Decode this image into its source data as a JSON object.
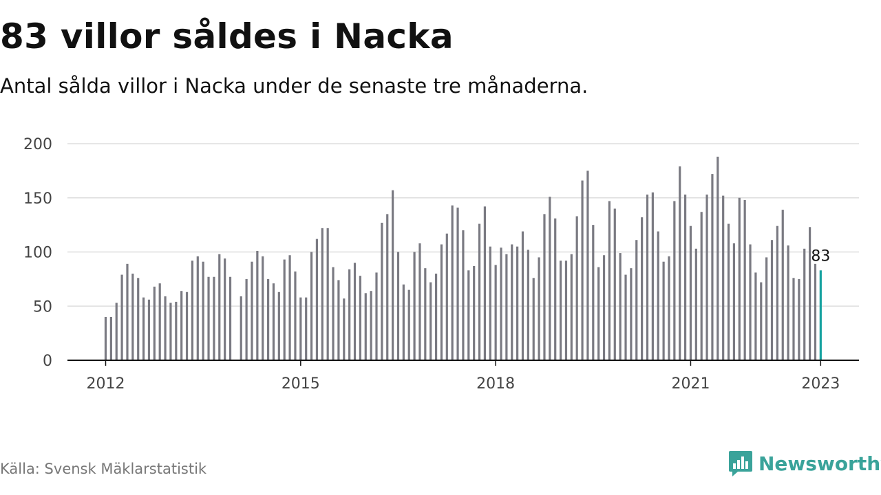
{
  "title": "83 villor såldes i Nacka",
  "subtitle": "Antal sålda villor i Nacka under de senaste tre månaderna.",
  "source": "Källa: Svensk Mäklarstatistik",
  "brand": {
    "name": "Newsworthy",
    "icon": "newsworthy-logo-icon"
  },
  "colors": {
    "bar": "#7a7a82",
    "highlight": "#17a2a0",
    "grid": "#dddddd",
    "axis": "#111111",
    "brand": "#3aa39a"
  },
  "chart_data": {
    "type": "bar",
    "xlabel": "",
    "ylabel": "",
    "ylim": [
      0,
      200
    ],
    "yticks": [
      0,
      50,
      100,
      150,
      200
    ],
    "xtick_labels": [
      "2012",
      "2015",
      "2018",
      "2021",
      "2023"
    ],
    "grid": true,
    "x_start": "2012-01",
    "x_end": "2023-01",
    "highlight_label": "83",
    "values": [
      40,
      40,
      53,
      79,
      89,
      80,
      76,
      58,
      56,
      68,
      71,
      59,
      53,
      54,
      64,
      63,
      92,
      96,
      91,
      77,
      77,
      98,
      94,
      77,
      null,
      59,
      75,
      91,
      101,
      96,
      75,
      71,
      63,
      93,
      97,
      82,
      58,
      58,
      100,
      112,
      122,
      122,
      86,
      74,
      57,
      84,
      90,
      78,
      62,
      64,
      81,
      127,
      135,
      157,
      100,
      70,
      65,
      100,
      108,
      85,
      72,
      80,
      107,
      117,
      143,
      141,
      120,
      83,
      87,
      126,
      142,
      105,
      88,
      104,
      98,
      107,
      105,
      119,
      102,
      76,
      95,
      135,
      151,
      131,
      92,
      92,
      98,
      133,
      166,
      175,
      125,
      86,
      97,
      147,
      140,
      99,
      79,
      85,
      111,
      132,
      153,
      155,
      119,
      91,
      96,
      147,
      179,
      153,
      124,
      103,
      137,
      153,
      172,
      188,
      152,
      126,
      108,
      150,
      148,
      107,
      81,
      72,
      95,
      111,
      124,
      139,
      106,
      76,
      75,
      103,
      123,
      89,
      83
    ]
  }
}
